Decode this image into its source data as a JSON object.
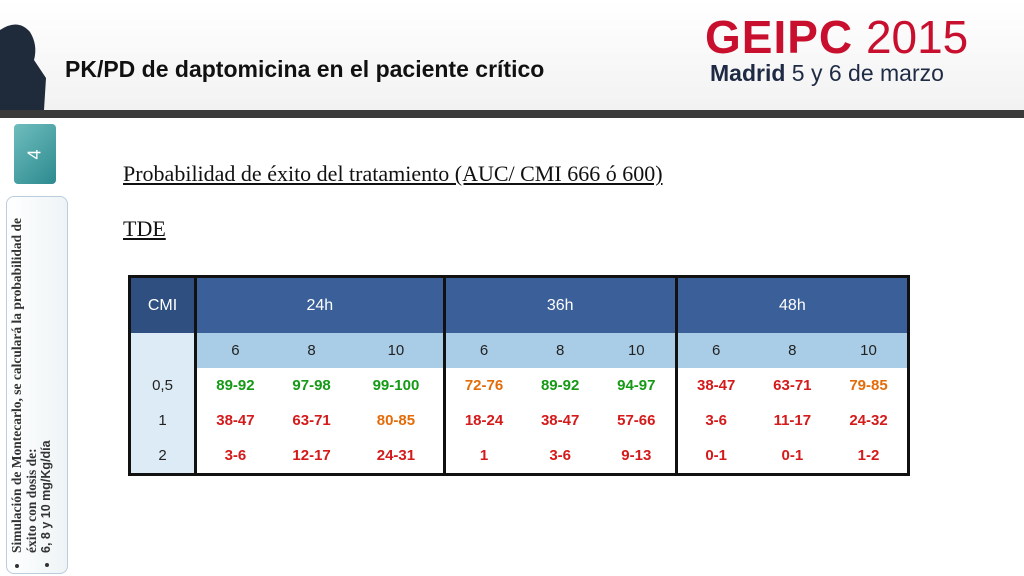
{
  "header": {
    "title": "PK/PD de daptomicina en el paciente crítico",
    "logo": {
      "name": "GEIPC",
      "year": "2015",
      "city": "Madrid",
      "dates": "5 y 6 de marzo"
    }
  },
  "slide_number": "4",
  "sidebar": {
    "bullets": [
      "Simulación de Montecarlo, se calculará la probabilidad de éxito con dosis de:",
      "6, 8 y 10 mg/Kg/día"
    ]
  },
  "body": {
    "subtitle": "Probabilidad de éxito del tratamiento (AUC/ CMI 666 ó 600)",
    "label": "TDE"
  },
  "table": {
    "corner": "CMI",
    "groups": [
      "24h",
      "36h",
      "48h"
    ],
    "doses": [
      "6",
      "8",
      "10"
    ],
    "rows": [
      {
        "cmi": "0,5",
        "cells": [
          {
            "text": "89-92",
            "color": "#159a15"
          },
          {
            "text": "97-98",
            "color": "#159a15"
          },
          {
            "text": "99-100",
            "color": "#159a15"
          },
          {
            "text": "72-76",
            "color": "#e36c09"
          },
          {
            "text": "89-92",
            "color": "#159a15"
          },
          {
            "text": "94-97",
            "color": "#159a15"
          },
          {
            "text": "38-47",
            "color": "#d41a1a"
          },
          {
            "text": "63-71",
            "color": "#d41a1a"
          },
          {
            "text": "79-85",
            "color": "#e36c09"
          }
        ]
      },
      {
        "cmi": "1",
        "cells": [
          {
            "text": "38-47",
            "color": "#d41a1a"
          },
          {
            "text": "63-71",
            "color": "#d41a1a"
          },
          {
            "text": "80-85",
            "color": "#e36c09"
          },
          {
            "text": "18-24",
            "color": "#d41a1a"
          },
          {
            "text": "38-47",
            "color": "#d41a1a"
          },
          {
            "text": "57-66",
            "color": "#d41a1a"
          },
          {
            "text": "3-6",
            "color": "#d41a1a"
          },
          {
            "text": "11-17",
            "color": "#d41a1a"
          },
          {
            "text": "24-32",
            "color": "#d41a1a"
          }
        ]
      },
      {
        "cmi": "2",
        "cells": [
          {
            "text": "3-6",
            "color": "#d41a1a"
          },
          {
            "text": "12-17",
            "color": "#d41a1a"
          },
          {
            "text": "24-31",
            "color": "#d41a1a"
          },
          {
            "text": "1",
            "color": "#d41a1a"
          },
          {
            "text": "3-6",
            "color": "#d41a1a"
          },
          {
            "text": "9-13",
            "color": "#d41a1a"
          },
          {
            "text": "0-1",
            "color": "#d41a1a"
          },
          {
            "text": "0-1",
            "color": "#d41a1a"
          },
          {
            "text": "1-2",
            "color": "#d41a1a"
          }
        ]
      }
    ]
  }
}
